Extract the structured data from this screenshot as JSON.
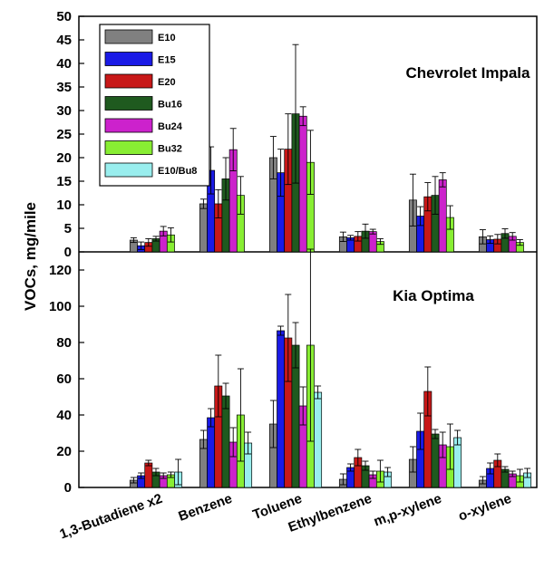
{
  "chart_data": {
    "type": "bar",
    "ylabel": "VOCs, mg/mile",
    "categories": [
      "1,3-Butadiene x2",
      "Benzene",
      "Toluene",
      "Ethylbenzene",
      "m,p-xylene",
      "o-xylene"
    ],
    "legend": {
      "placement": "top-left",
      "entries": [
        "E10",
        "E15",
        "E20",
        "Bu16",
        "Bu24",
        "Bu32",
        "E10/Bu8"
      ]
    },
    "series_colors": [
      "#808080",
      "#1a1ae6",
      "#c81818",
      "#1f5a1f",
      "#cc22cc",
      "#88ee33",
      "#99eeee"
    ],
    "panels": [
      {
        "title": "Chevrolet Impala",
        "ylim": [
          0,
          50
        ],
        "yticks": [
          0,
          5,
          10,
          15,
          20,
          25,
          30,
          35,
          40,
          45,
          50
        ],
        "series": [
          {
            "name": "E10",
            "values": [
              2.5,
              10.2,
              20.0,
              3.2,
              11.0,
              3.2
            ],
            "errors": [
              0.5,
              1.0,
              4.5,
              1.0,
              5.5,
              1.5
            ]
          },
          {
            "name": "E15",
            "values": [
              1.3,
              17.3,
              16.8,
              3.0,
              7.6,
              2.6
            ],
            "errors": [
              0.8,
              5.0,
              5.0,
              0.5,
              2.0,
              0.8
            ]
          },
          {
            "name": "E20",
            "values": [
              2.0,
              10.2,
              21.8,
              3.3,
              11.7,
              2.7
            ],
            "errors": [
              0.8,
              3.0,
              7.5,
              1.0,
              3.0,
              1.0
            ]
          },
          {
            "name": "Bu16",
            "values": [
              2.8,
              15.5,
              29.3,
              4.4,
              12.0,
              3.9
            ],
            "errors": [
              0.5,
              4.5,
              14.7,
              1.5,
              4.0,
              1.0
            ]
          },
          {
            "name": "Bu24",
            "values": [
              4.4,
              21.7,
              28.8,
              4.3,
              15.3,
              3.3
            ],
            "errors": [
              1.0,
              4.5,
              2.0,
              0.5,
              1.5,
              0.8
            ]
          },
          {
            "name": "Bu32",
            "values": [
              3.6,
              12.0,
              19.0,
              2.2,
              7.3,
              2.0
            ],
            "errors": [
              1.5,
              4.0,
              6.8,
              0.6,
              2.5,
              0.6
            ]
          },
          {
            "name": "E10/Bu8",
            "values": [
              null,
              null,
              null,
              null,
              null,
              null
            ],
            "errors": [
              null,
              null,
              null,
              null,
              null,
              null
            ]
          }
        ]
      },
      {
        "title": "Kia Optima",
        "ylim": [
          0,
          130
        ],
        "yticks": [
          0,
          20,
          40,
          60,
          80,
          100,
          120
        ],
        "series": [
          {
            "name": "E10",
            "values": [
              4.0,
              26.5,
              35.0,
              4.5,
              15.5,
              4.0
            ],
            "errors": [
              1.5,
              5.0,
              13.0,
              3.0,
              7.0,
              2.0
            ]
          },
          {
            "name": "E15",
            "values": [
              6.5,
              38.5,
              86.5,
              11.0,
              31.0,
              10.5
            ],
            "errors": [
              1.5,
              5.0,
              2.5,
              2.0,
              10.0,
              3.0
            ]
          },
          {
            "name": "E20",
            "values": [
              13.5,
              56.0,
              82.5,
              16.5,
              53.0,
              15.0
            ],
            "errors": [
              1.5,
              17.0,
              24.0,
              4.5,
              13.5,
              3.5
            ]
          },
          {
            "name": "Bu16",
            "values": [
              8.5,
              50.5,
              78.5,
              12.0,
              29.5,
              10.0
            ],
            "errors": [
              2.0,
              7.0,
              12.5,
              2.5,
              2.5,
              1.5
            ]
          },
          {
            "name": "Bu24",
            "values": [
              6.5,
              25.0,
              45.0,
              7.0,
              23.5,
              7.5
            ],
            "errors": [
              1.5,
              8.0,
              10.5,
              2.0,
              7.0,
              1.5
            ]
          },
          {
            "name": "Bu32",
            "values": [
              7.0,
              40.0,
              78.5,
              9.0,
              22.5,
              6.5
            ],
            "errors": [
              1.5,
              25.5,
              53.0,
              6.0,
              12.5,
              3.5
            ]
          },
          {
            "name": "E10/Bu8",
            "values": [
              8.5,
              24.5,
              52.5,
              8.5,
              27.5,
              8.0
            ],
            "errors": [
              7.0,
              6.0,
              3.5,
              2.5,
              4.0,
              2.5
            ]
          }
        ]
      }
    ]
  }
}
